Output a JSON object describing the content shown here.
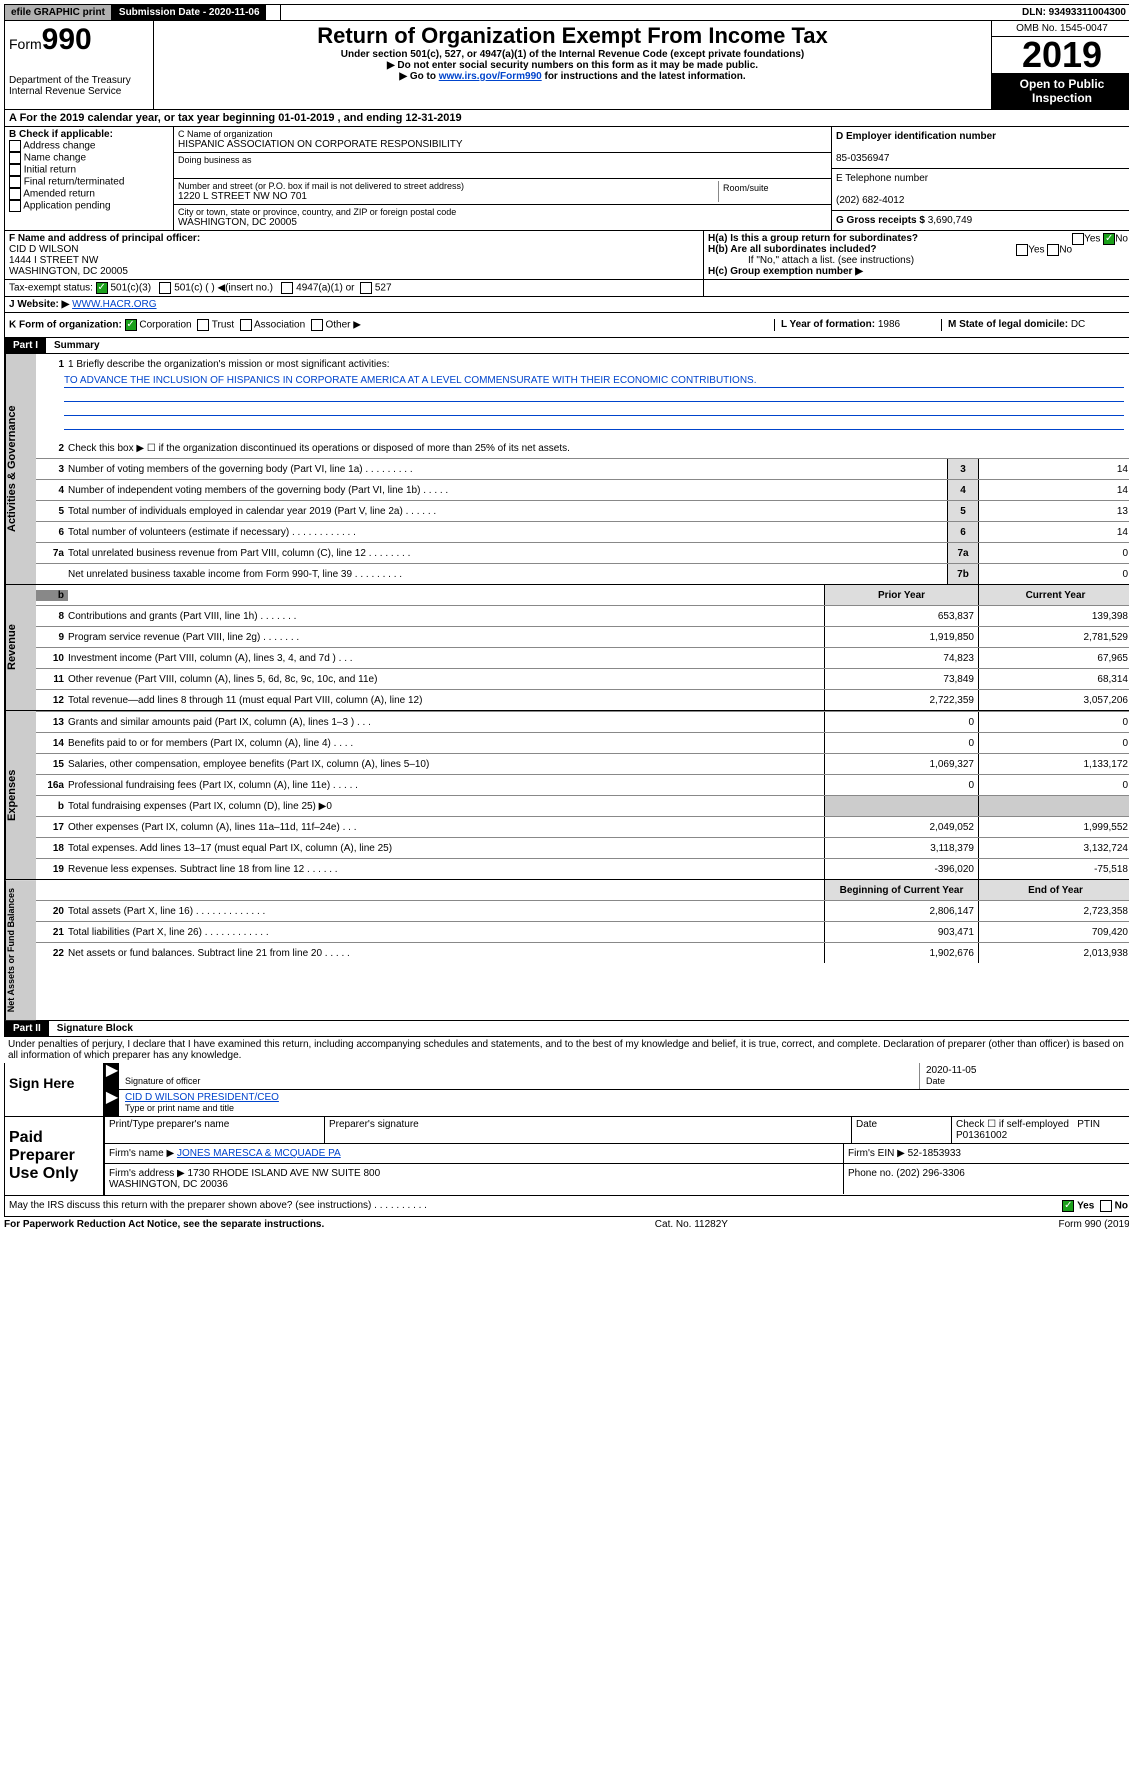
{
  "topbar": {
    "efile": "efile GRAPHIC print",
    "subdate_label": "Submission Date - 2020-11-06",
    "dln": "DLN: 93493311004300"
  },
  "header": {
    "form": "Form",
    "form_num": "990",
    "title": "Return of Organization Exempt From Income Tax",
    "sub1": "Under section 501(c), 527, or 4947(a)(1) of the Internal Revenue Code (except private foundations)",
    "sub2": "▶ Do not enter social security numbers on this form as it may be made public.",
    "sub3_pre": "▶ Go to ",
    "sub3_link": "www.irs.gov/Form990",
    "sub3_post": " for instructions and the latest information.",
    "dept": "Department of the Treasury\nInternal Revenue Service",
    "omb": "OMB No. 1545-0047",
    "year": "2019",
    "open": "Open to Public Inspection"
  },
  "row_a": "A For the 2019 calendar year, or tax year beginning 01-01-2019    , and ending 12-31-2019",
  "col_b": {
    "title": "B Check if applicable:",
    "items": [
      "Address change",
      "Name change",
      "Initial return",
      "Final return/terminated",
      "Amended return",
      "Application pending"
    ]
  },
  "col_c": {
    "name_label": "C Name of organization",
    "name": "HISPANIC ASSOCIATION ON CORPORATE RESPONSIBILITY",
    "dba_label": "Doing business as",
    "addr_label": "Number and street (or P.O. box if mail is not delivered to street address)",
    "room_label": "Room/suite",
    "addr": "1220 L STREET NW NO 701",
    "city_label": "City or town, state or province, country, and ZIP or foreign postal code",
    "city": "WASHINGTON, DC  20005"
  },
  "col_d": {
    "ein_label": "D Employer identification number",
    "ein": "85-0356947",
    "tel_label": "E Telephone number",
    "tel": "(202) 682-4012",
    "gross_label": "G Gross receipts $",
    "gross": "3,690,749"
  },
  "row_f": {
    "label": "F  Name and address of principal officer:",
    "name": "CID D WILSON",
    "addr": "1444 I STREET NW\nWASHINGTON, DC  20005"
  },
  "row_h": {
    "ha": "H(a)  Is this a group return for subordinates?",
    "hb": "H(b)  Are all subordinates included?",
    "hb_note": "If \"No,\" attach a list. (see instructions)",
    "hc": "H(c)  Group exemption number ▶"
  },
  "row_i": {
    "label": "Tax-exempt status:",
    "opts": [
      "501(c)(3)",
      "501(c) (  ) ◀(insert no.)",
      "4947(a)(1) or",
      "527"
    ]
  },
  "row_j": {
    "label": "J Website: ▶",
    "val": "WWW.HACR.ORG"
  },
  "row_k": {
    "label": "K Form of organization:",
    "opts": [
      "Corporation",
      "Trust",
      "Association",
      "Other ▶"
    ],
    "l_label": "L Year of formation:",
    "l_val": "1986",
    "m_label": "M State of legal domicile:",
    "m_val": "DC"
  },
  "part1": {
    "header": "Part I",
    "title": "Summary",
    "line1_label": "1  Briefly describe the organization's mission or most significant activities:",
    "mission": "TO ADVANCE THE INCLUSION OF HISPANICS IN CORPORATE AMERICA AT A LEVEL COMMENSURATE WITH THEIR ECONOMIC CONTRIBUTIONS.",
    "line2": "Check this box ▶ ☐  if the organization discontinued its operations or disposed of more than 25% of its net assets.",
    "gov": [
      {
        "n": "3",
        "d": "Number of voting members of the governing body (Part VI, line 1a)   .     .     .     .     .     .     .     .     .",
        "b": "3",
        "v": "14"
      },
      {
        "n": "4",
        "d": "Number of independent voting members of the governing body (Part VI, line 1b)   .     .     .     .     .",
        "b": "4",
        "v": "14"
      },
      {
        "n": "5",
        "d": "Total number of individuals employed in calendar year 2019 (Part V, line 2a)   .     .     .     .     .     .",
        "b": "5",
        "v": "13"
      },
      {
        "n": "6",
        "d": "Total number of volunteers (estimate if necessary)   .     .     .     .     .     .     .     .     .     .     .     .",
        "b": "6",
        "v": "14"
      },
      {
        "n": "7a",
        "d": "Total unrelated business revenue from Part VIII, column (C), line 12   .     .     .     .     .     .     .     .",
        "b": "7a",
        "v": "0"
      },
      {
        "n": "",
        "d": "Net unrelated business taxable income from Form 990-T, line 39   .     .     .     .     .     .     .     .     .",
        "b": "7b",
        "v": "0"
      }
    ],
    "rev_head": {
      "prior": "Prior Year",
      "curr": "Current Year"
    },
    "rev": [
      {
        "n": "8",
        "d": "Contributions and grants (Part VIII, line 1h)   .     .     .     .     .     .     .",
        "p": "653,837",
        "c": "139,398"
      },
      {
        "n": "9",
        "d": "Program service revenue (Part VIII, line 2g)   .     .     .     .     .     .     .",
        "p": "1,919,850",
        "c": "2,781,529"
      },
      {
        "n": "10",
        "d": "Investment income (Part VIII, column (A), lines 3, 4, and 7d )   .     .     .",
        "p": "74,823",
        "c": "67,965"
      },
      {
        "n": "11",
        "d": "Other revenue (Part VIII, column (A), lines 5, 6d, 8c, 9c, 10c, and 11e)",
        "p": "73,849",
        "c": "68,314"
      },
      {
        "n": "12",
        "d": "Total revenue—add lines 8 through 11 (must equal Part VIII, column (A), line 12)",
        "p": "2,722,359",
        "c": "3,057,206"
      }
    ],
    "exp": [
      {
        "n": "13",
        "d": "Grants and similar amounts paid (Part IX, column (A), lines 1–3 )   .     .     .",
        "p": "0",
        "c": "0"
      },
      {
        "n": "14",
        "d": "Benefits paid to or for members (Part IX, column (A), line 4)   .     .     .     .",
        "p": "0",
        "c": "0"
      },
      {
        "n": "15",
        "d": "Salaries, other compensation, employee benefits (Part IX, column (A), lines 5–10)",
        "p": "1,069,327",
        "c": "1,133,172"
      },
      {
        "n": "16a",
        "d": "Professional fundraising fees (Part IX, column (A), line 11e)   .     .     .     .     .",
        "p": "0",
        "c": "0"
      },
      {
        "n": "b",
        "d": "Total fundraising expenses (Part IX, column (D), line 25) ▶0",
        "p": "",
        "c": ""
      },
      {
        "n": "17",
        "d": "Other expenses (Part IX, column (A), lines 11a–11d, 11f–24e)   .     .     .",
        "p": "2,049,052",
        "c": "1,999,552"
      },
      {
        "n": "18",
        "d": "Total expenses. Add lines 13–17 (must equal Part IX, column (A), line 25)",
        "p": "3,118,379",
        "c": "3,132,724"
      },
      {
        "n": "19",
        "d": "Revenue less expenses. Subtract line 18 from line 12   .     .     .     .     .     .",
        "p": "-396,020",
        "c": "-75,518"
      }
    ],
    "net_head": {
      "prior": "Beginning of Current Year",
      "curr": "End of Year"
    },
    "net": [
      {
        "n": "20",
        "d": "Total assets (Part X, line 16)   .     .     .     .     .     .     .     .     .     .     .     .     .",
        "p": "2,806,147",
        "c": "2,723,358"
      },
      {
        "n": "21",
        "d": "Total liabilities (Part X, line 26)   .     .     .     .     .     .     .     .     .     .     .     .",
        "p": "903,471",
        "c": "709,420"
      },
      {
        "n": "22",
        "d": "Net assets or fund balances. Subtract line 21 from line 20   .     .     .     .     .",
        "p": "1,902,676",
        "c": "2,013,938"
      }
    ],
    "vlabels": {
      "gov": "Activities & Governance",
      "rev": "Revenue",
      "exp": "Expenses",
      "net": "Net Assets or Fund Balances"
    }
  },
  "part2": {
    "header": "Part II",
    "title": "Signature Block",
    "perjury": "Under penalties of perjury, I declare that I have examined this return, including accompanying schedules and statements, and to the best of my knowledge and belief, it is true, correct, and complete. Declaration of preparer (other than officer) is based on all information of which preparer has any knowledge.",
    "sign_here": "Sign Here",
    "sig_officer": "Signature of officer",
    "sig_date": "2020-11-05",
    "date_label": "Date",
    "officer_name": "CID D WILSON  PRESIDENT/CEO",
    "officer_label": "Type or print name and title",
    "paid": "Paid Preparer Use Only",
    "prep_name_label": "Print/Type preparer's name",
    "prep_sig_label": "Preparer's signature",
    "prep_date_label": "Date",
    "prep_check": "Check ☐ if self-employed",
    "ptin_label": "PTIN",
    "ptin": "P01361002",
    "firm_name_label": "Firm's name    ▶",
    "firm_name": "JONES MARESCA & MCQUADE PA",
    "firm_ein_label": "Firm's EIN ▶",
    "firm_ein": "52-1853933",
    "firm_addr_label": "Firm's address ▶",
    "firm_addr": "1730 RHODE ISLAND AVE NW SUITE 800\nWASHINGTON, DC  20036",
    "firm_phone_label": "Phone no.",
    "firm_phone": "(202) 296-3306",
    "discuss": "May the IRS discuss this return with the preparer shown above? (see instructions)    .     .     .     .     .     .     .     .     .     .",
    "yes": "Yes",
    "no": "No"
  },
  "footer": {
    "left": "For Paperwork Reduction Act Notice, see the separate instructions.",
    "mid": "Cat. No. 11282Y",
    "right": "Form 990 (2019)"
  }
}
